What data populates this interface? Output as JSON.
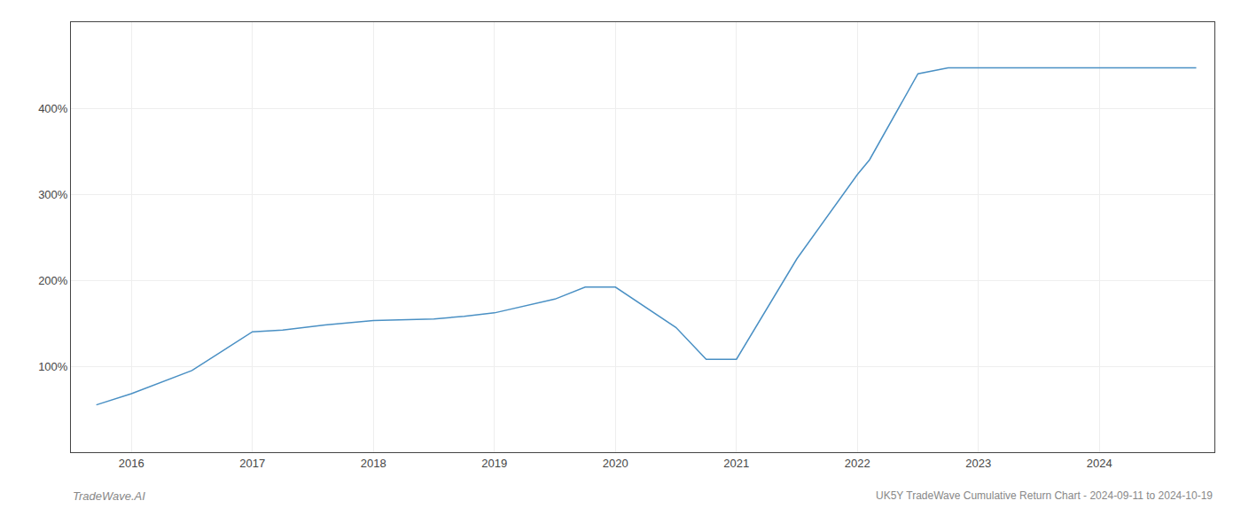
{
  "chart_data": {
    "type": "line",
    "title": "UK5Y TradeWave Cumulative Return Chart - 2024-09-11 to 2024-10-19",
    "annotations": [
      "TradeWave.AI"
    ],
    "x": [
      2015.71,
      2016.0,
      2016.5,
      2017.0,
      2017.25,
      2017.6,
      2018.0,
      2018.5,
      2018.75,
      2019.0,
      2019.5,
      2019.75,
      2019.9,
      2020.0,
      2020.5,
      2020.75,
      2021.0,
      2021.5,
      2022.0,
      2022.1,
      2022.5,
      2022.75,
      2023.0,
      2023.5,
      2024.0,
      2024.5,
      2024.8
    ],
    "values": [
      55,
      68,
      95,
      140,
      142,
      148,
      153,
      155,
      158,
      162,
      178,
      192,
      192,
      192,
      145,
      108,
      108,
      225,
      323,
      340,
      440,
      447,
      447,
      447,
      447,
      447,
      447
    ],
    "color": "#4a90c4",
    "xlim": [
      2015.5,
      2024.95
    ],
    "ylim": [
      0,
      500
    ],
    "xticks": [
      2016,
      2017,
      2018,
      2019,
      2020,
      2021,
      2022,
      2023,
      2024
    ],
    "yticks": [
      {
        "value": 100,
        "label": "100%"
      },
      {
        "value": 200,
        "label": "200%"
      },
      {
        "value": 300,
        "label": "300%"
      },
      {
        "value": 400,
        "label": "400%"
      }
    ],
    "grid": true
  }
}
